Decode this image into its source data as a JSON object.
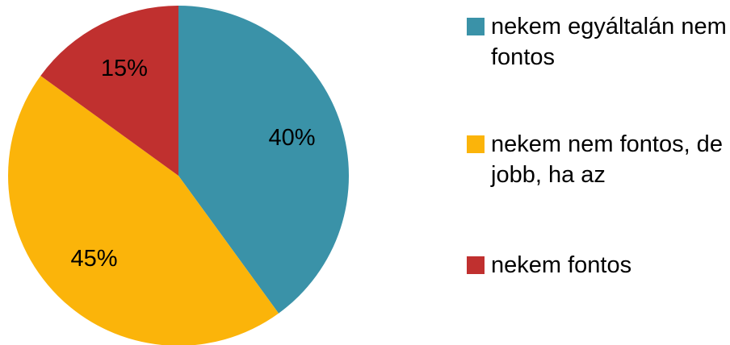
{
  "chart_data": {
    "type": "pie",
    "categories": [
      "nekem egyáltalán nem fontos",
      "nekem nem fontos, de jobb, ha az",
      "nekem fontos"
    ],
    "values": [
      40,
      45,
      15
    ],
    "value_labels": [
      "40%",
      "45%",
      "15%"
    ],
    "colors": [
      "#3a92a8",
      "#fbb40a",
      "#c0302f"
    ],
    "legend": "right"
  }
}
